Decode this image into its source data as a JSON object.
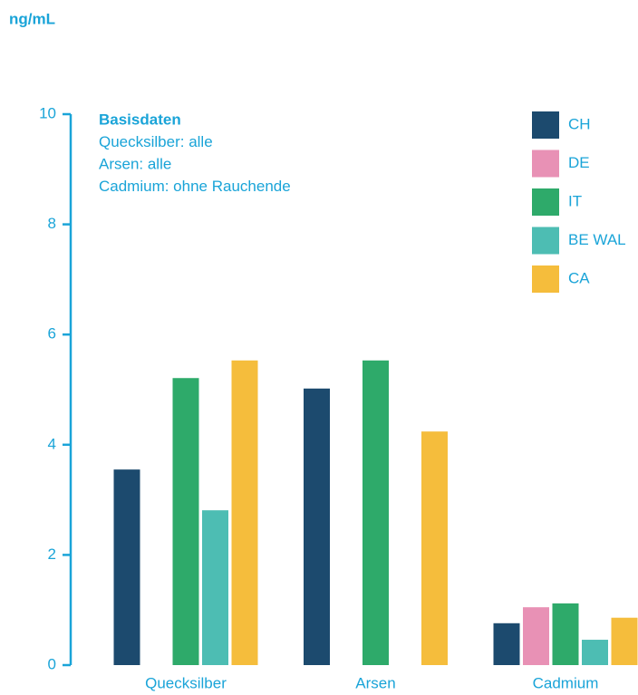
{
  "chart_data": {
    "type": "bar",
    "y_axis_label": "ng/mL",
    "annotations": [
      "Basisdaten",
      "Quecksilber: alle",
      "Arsen: alle",
      "Cadmium: ohne Rauchende"
    ],
    "categories": [
      "Quecksilber",
      "Arsen",
      "Cadmium"
    ],
    "series": [
      {
        "name": "CH",
        "color": "#1c4a6e",
        "values": [
          3.55,
          5.02,
          0.76
        ]
      },
      {
        "name": "DE",
        "color": "#e891b5",
        "values": [
          null,
          null,
          1.05
        ]
      },
      {
        "name": "IT",
        "color": "#2eaa6a",
        "values": [
          5.21,
          5.53,
          1.12
        ]
      },
      {
        "name": "BE WAL",
        "color": "#4dbdb3",
        "values": [
          2.81,
          null,
          0.46
        ]
      },
      {
        "name": "CA",
        "color": "#f5bd3c",
        "values": [
          5.53,
          4.24,
          0.86
        ]
      }
    ],
    "ylim": [
      0,
      10
    ],
    "yticks": [
      0,
      2,
      4,
      6,
      8,
      10
    ],
    "legend": "upper right"
  }
}
